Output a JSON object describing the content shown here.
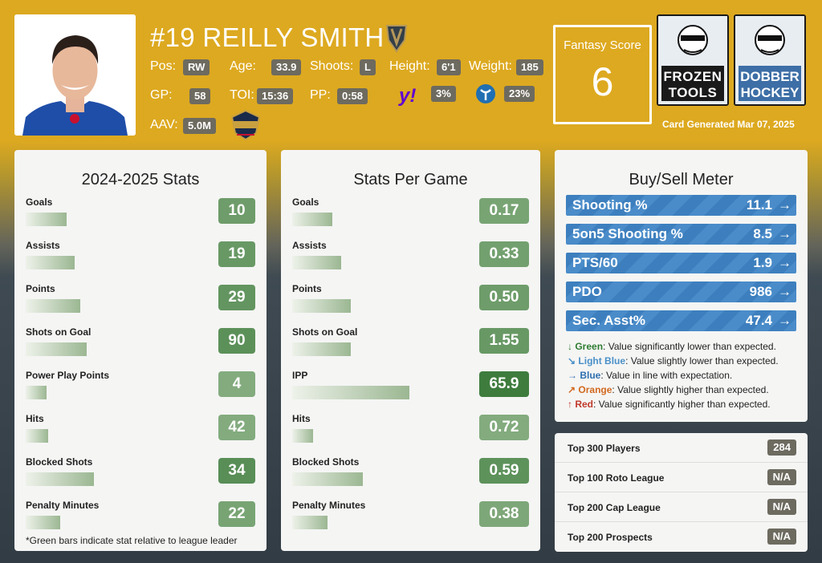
{
  "player": {
    "name": "#19 REILLY SMITH",
    "pos_label": "Pos:",
    "pos": "RW",
    "age_label": "Age:",
    "age": "33.9",
    "shoots_label": "Shoots:",
    "shoots": "L",
    "height_label": "Height:",
    "height": "6'1",
    "weight_label": "Weight:",
    "weight": "185",
    "gp_label": "GP:",
    "gp": "58",
    "toi_label": "TOI:",
    "toi": "15:36",
    "pp_label": "PP:",
    "pp": "0:58",
    "yahoo_pct": "3%",
    "other_pct": "23%",
    "aav_label": "AAV:",
    "aav": "5.0M"
  },
  "fantasy": {
    "label": "Fantasy Score",
    "value": "6"
  },
  "brands": {
    "frozen_line1": "FROZEN",
    "frozen_line2": "TOOLS",
    "dobber_line1": "DOBBER",
    "dobber_line2": "HOCKEY"
  },
  "card_generated": "Card Generated Mar 07, 2025",
  "season": {
    "title": "2024-2025 Stats",
    "rows": [
      {
        "label": "Goals",
        "value": "10",
        "pct": 0.46,
        "shade": 0.55
      },
      {
        "label": "Assists",
        "value": "19",
        "pct": 0.55,
        "shade": 0.6
      },
      {
        "label": "Points",
        "value": "29",
        "pct": 0.62,
        "shade": 0.65
      },
      {
        "label": "Shots on Goal",
        "value": "90",
        "pct": 0.69,
        "shade": 0.72
      },
      {
        "label": "Power Play Points",
        "value": "4",
        "pct": 0.24,
        "shade": 0.35
      },
      {
        "label": "Hits",
        "value": "42",
        "pct": 0.25,
        "shade": 0.35
      },
      {
        "label": "Blocked Shots",
        "value": "34",
        "pct": 0.77,
        "shade": 0.75
      },
      {
        "label": "Penalty Minutes",
        "value": "22",
        "pct": 0.39,
        "shade": 0.45
      }
    ],
    "footnote": "*Green bars indicate stat relative to league leader"
  },
  "pergame": {
    "title": "Stats Per Game",
    "rows": [
      {
        "label": "Goals",
        "value": "0.17",
        "pct": 0.34,
        "shade": 0.45
      },
      {
        "label": "Assists",
        "value": "0.33",
        "pct": 0.42,
        "shade": 0.5
      },
      {
        "label": "Points",
        "value": "0.50",
        "pct": 0.5,
        "shade": 0.55
      },
      {
        "label": "Shots on Goal",
        "value": "1.55",
        "pct": 0.5,
        "shade": 0.6
      },
      {
        "label": "IPP",
        "value": "65.9",
        "pct": 1.0,
        "shade": 1.0
      },
      {
        "label": "Hits",
        "value": "0.72",
        "pct": 0.18,
        "shade": 0.35
      },
      {
        "label": "Blocked Shots",
        "value": "0.59",
        "pct": 0.6,
        "shade": 0.7
      },
      {
        "label": "Penalty Minutes",
        "value": "0.38",
        "pct": 0.3,
        "shade": 0.4
      }
    ]
  },
  "meter": {
    "title": "Buy/Sell Meter",
    "rows": [
      {
        "label": "Shooting %",
        "value": "11.1"
      },
      {
        "label": "5on5 Shooting %",
        "value": "8.5"
      },
      {
        "label": "PTS/60",
        "value": "1.9"
      },
      {
        "label": "PDO",
        "value": "986"
      },
      {
        "label": "Sec. Asst%",
        "value": "47.4"
      }
    ],
    "arrow": "→",
    "legend": [
      {
        "icon": "↓",
        "color": "#2e7d32",
        "name": "Green",
        "desc": ": Value significantly lower than expected."
      },
      {
        "icon": "↘",
        "color": "#4a90c8",
        "name": "Light Blue",
        "desc": ": Value slightly lower than expected."
      },
      {
        "icon": "→",
        "color": "#2f6fb0",
        "name": "Blue",
        "desc": ": Value in line with expectation."
      },
      {
        "icon": "↗",
        "color": "#d2691e",
        "name": "Orange",
        "desc": ": Value slightly higher than expected."
      },
      {
        "icon": "↑",
        "color": "#c0392b",
        "name": "Red",
        "desc": ": Value significantly higher than expected."
      }
    ]
  },
  "rankings": [
    {
      "label": "Top 300 Players",
      "value": "284"
    },
    {
      "label": "Top 100 Roto League",
      "value": "N/A"
    },
    {
      "label": "Top 200 Cap League",
      "value": "N/A"
    },
    {
      "label": "Top 200 Prospects",
      "value": "N/A"
    }
  ]
}
